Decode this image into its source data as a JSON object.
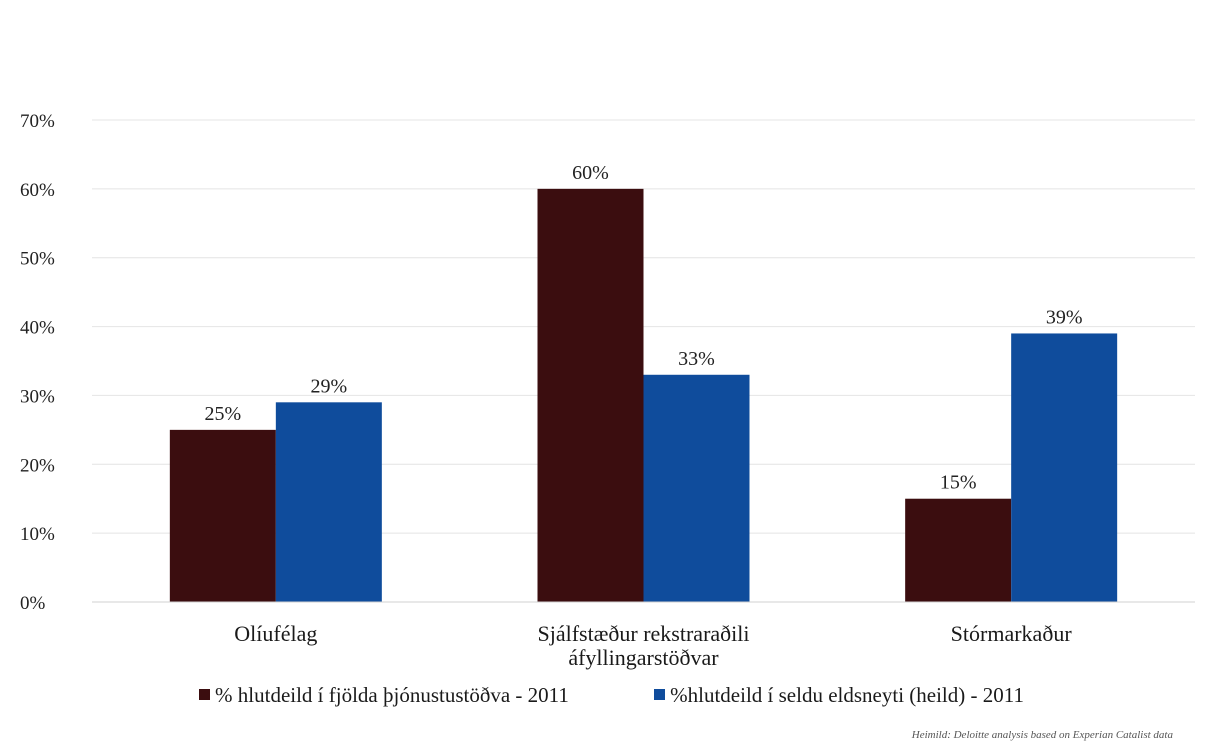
{
  "chart_data": {
    "type": "bar",
    "categories": [
      "Olíufélag",
      "Sjálfstæður rekstraraðili\náfyllingarstöðvar",
      "Stórmarkaður"
    ],
    "series": [
      {
        "name": "% hlutdeild í fjölda þjónustustöðva - 2011",
        "values": [
          25,
          60,
          15
        ],
        "labels": [
          "25%",
          "60%",
          "15%"
        ],
        "color": "#3b0d0f"
      },
      {
        "name": "%hlutdeild í seldu eldsneyti (heild) - 2011",
        "values": [
          29,
          33,
          39
        ],
        "labels": [
          "29%",
          "33%",
          "39%"
        ],
        "color": "#0f4c9c"
      }
    ],
    "yticks": [
      "0%",
      "10%",
      "20%",
      "30%",
      "40%",
      "50%",
      "60%",
      "70%"
    ],
    "ylim": [
      0,
      70
    ],
    "grid": true,
    "legend": "bottom",
    "title": "",
    "xlabel": "",
    "ylabel": ""
  },
  "source": "Heimild: Deloitte analysis based on Experian Catalist data"
}
